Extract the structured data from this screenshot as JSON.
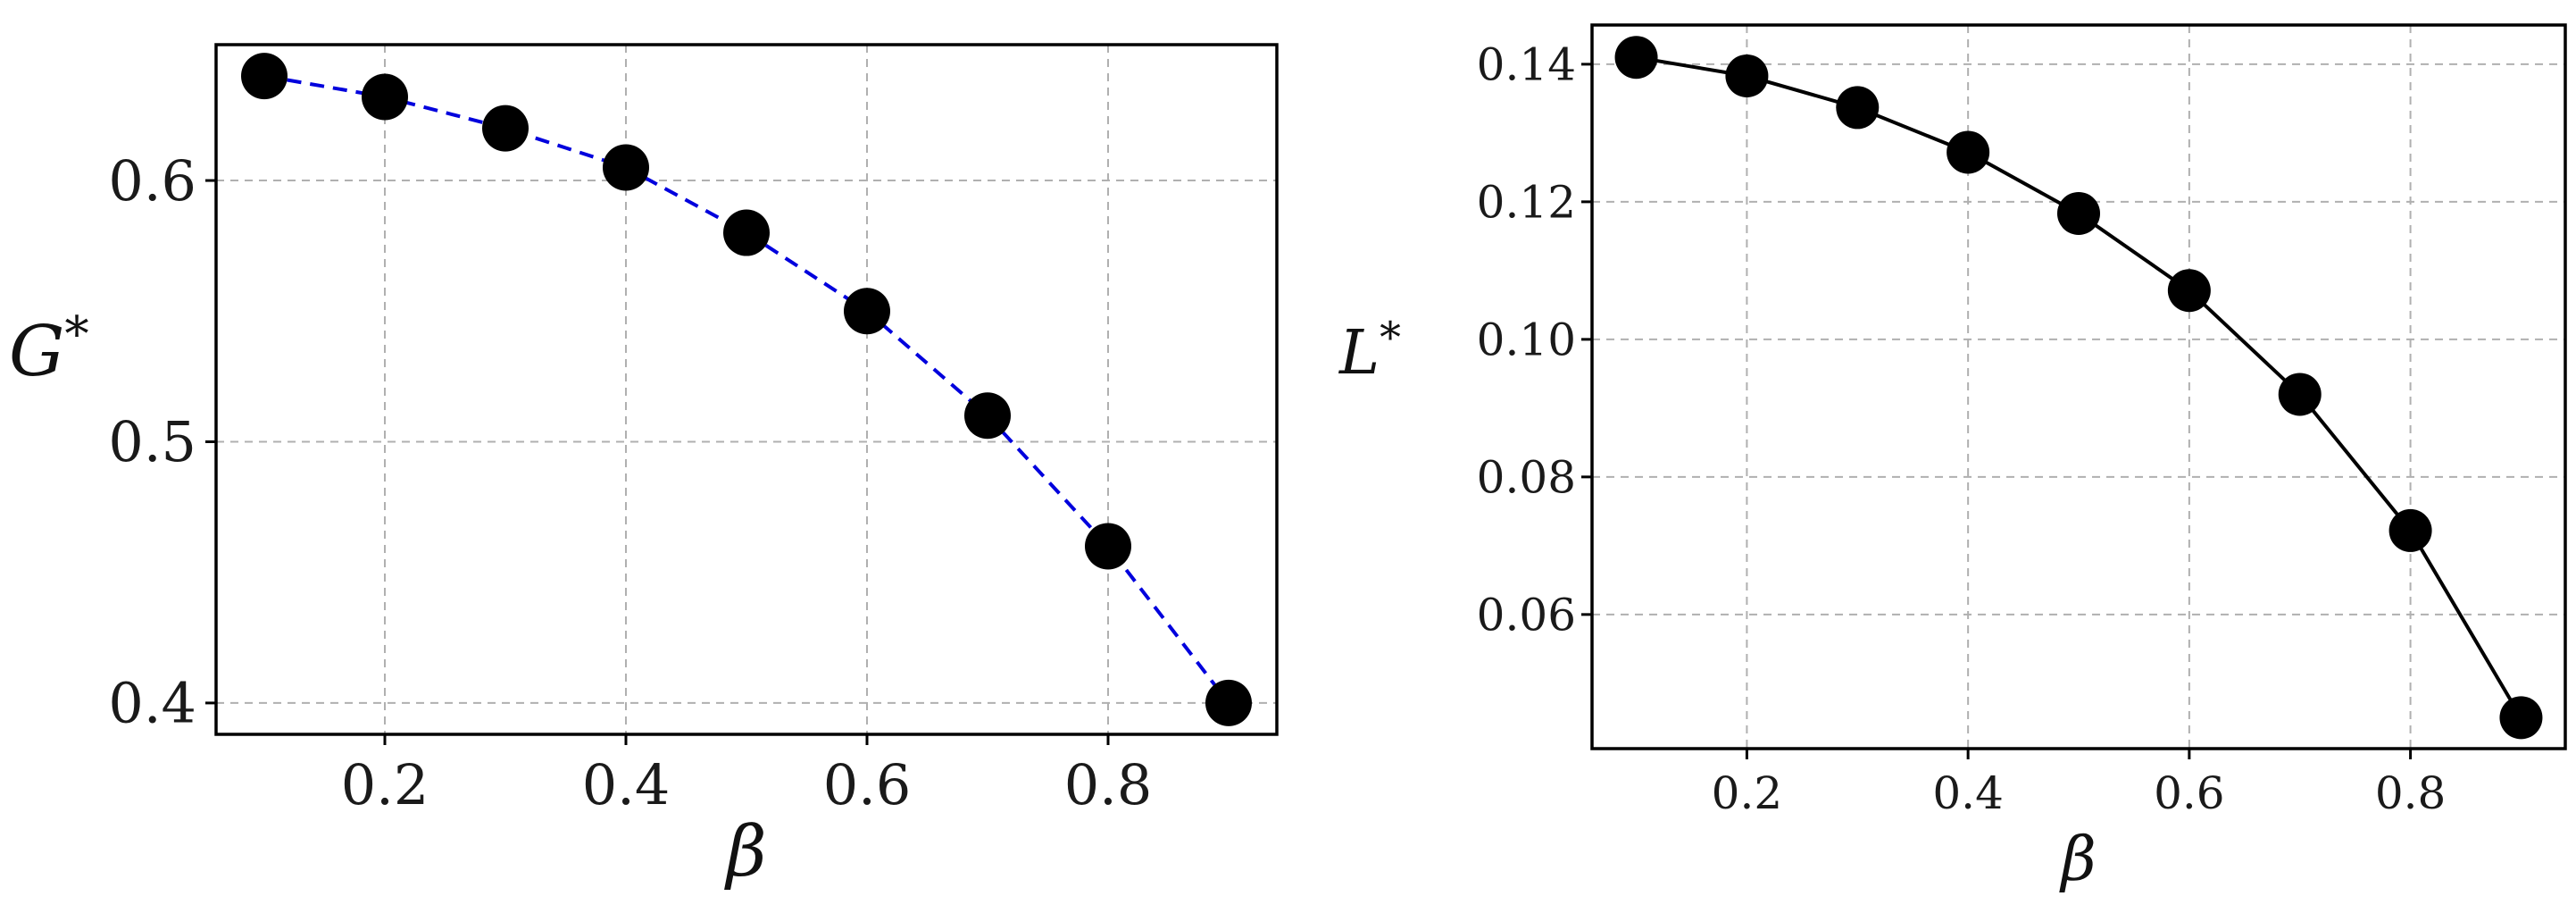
{
  "chart_data": [
    {
      "type": "line",
      "x": [
        0.1,
        0.2,
        0.3,
        0.4,
        0.5,
        0.6,
        0.7,
        0.8,
        0.9
      ],
      "series": [
        {
          "values": [
            0.64,
            0.632,
            0.62,
            0.605,
            0.58,
            0.55,
            0.51,
            0.46,
            0.4
          ],
          "color": "#0000dd",
          "line_style": "dashed",
          "marker": "circle",
          "marker_color": "#000000"
        }
      ],
      "xlabel": "β",
      "ylabel": "G",
      "ylabel_sup": "*",
      "xlim": [
        0.06,
        0.94
      ],
      "ylim": [
        0.388,
        0.652
      ],
      "xticks": [
        0.2,
        0.4,
        0.6,
        0.8
      ],
      "xtick_labels": [
        "0.2",
        "0.4",
        "0.6",
        "0.8"
      ],
      "yticks": [
        0.4,
        0.5,
        0.6
      ],
      "ytick_labels": [
        "0.4",
        "0.5",
        "0.6"
      ],
      "grid": true
    },
    {
      "type": "line",
      "x": [
        0.1,
        0.2,
        0.3,
        0.4,
        0.5,
        0.6,
        0.7,
        0.8,
        0.9
      ],
      "series": [
        {
          "values": [
            0.141,
            0.1383,
            0.1337,
            0.1272,
            0.1183,
            0.1071,
            0.092,
            0.0722,
            0.045
          ],
          "color": "#000000",
          "line_style": "solid",
          "marker": "circle",
          "marker_color": "#000000"
        }
      ],
      "xlabel": "β",
      "ylabel": "L",
      "ylabel_sup": "*",
      "xlim": [
        0.06,
        0.94
      ],
      "ylim": [
        0.0405,
        0.1457
      ],
      "xticks": [
        0.2,
        0.4,
        0.6,
        0.8
      ],
      "xtick_labels": [
        "0.2",
        "0.4",
        "0.6",
        "0.8"
      ],
      "yticks": [
        0.06,
        0.08,
        0.1,
        0.12,
        0.14
      ],
      "ytick_labels": [
        "0.06",
        "0.08",
        "0.10",
        "0.12",
        "0.14"
      ],
      "grid": true
    }
  ]
}
